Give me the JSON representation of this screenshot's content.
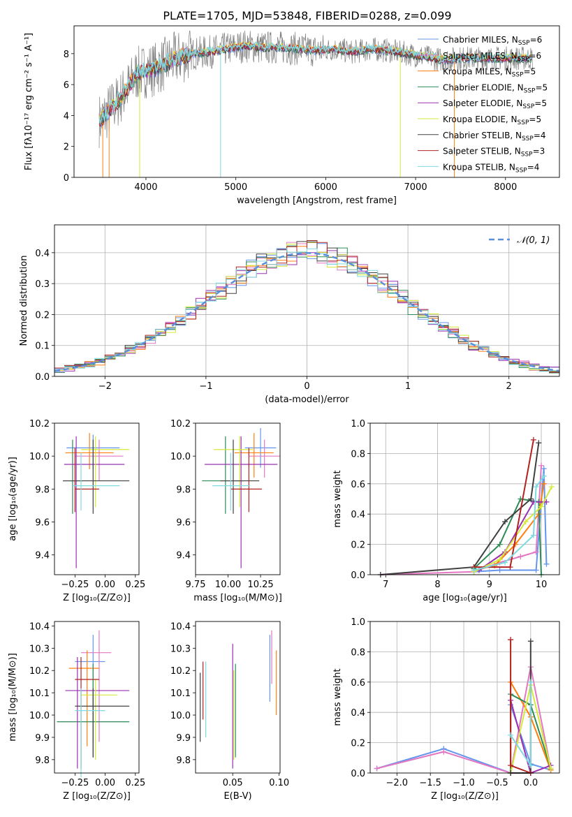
{
  "figure_title": "PLATE=1705, MJD=53848, FIBERID=0288, z=0.099",
  "model_colors": [
    "#6495ED",
    "#E377C2",
    "#FF7F0E",
    "#2E8B57",
    "#9B30B0",
    "#D4E93A",
    "#404040",
    "#B22222",
    "#7FD9E0"
  ],
  "legend_top": [
    {
      "label": "Chabrier MILES, N",
      "sub": "SSP",
      "suffix": "=6"
    },
    {
      "label": "Salpeter MILES, N",
      "sub": "SSP",
      "suffix": "=6"
    },
    {
      "label": "Kroupa MILES, N",
      "sub": "SSP",
      "suffix": "=5"
    },
    {
      "label": "Chabrier ELODIE, N",
      "sub": "SSP",
      "suffix": "=5"
    },
    {
      "label": "Salpeter ELODIE, N",
      "sub": "SSP",
      "suffix": "=5"
    },
    {
      "label": "Kroupa ELODIE, N",
      "sub": "SSP",
      "suffix": "=5"
    },
    {
      "label": "Chabrier STELIB, N",
      "sub": "SSP",
      "suffix": "=4"
    },
    {
      "label": "Salpeter STELIB, N",
      "sub": "SSP",
      "suffix": "=3"
    },
    {
      "label": "Kroupa STELIB, N",
      "sub": "SSP",
      "suffix": "=4"
    }
  ],
  "chart_data": [
    {
      "id": "spectrum",
      "type": "line",
      "xlabel": "wavelength [Angstrom, rest frame]",
      "ylabel": "Flux [fλ10⁻¹⁷ erg cm⁻² s⁻¹ A⁻¹]",
      "xlim": [
        3200,
        8600
      ],
      "ylim": [
        0,
        9.8
      ],
      "xticks": [
        4000,
        5000,
        6000,
        7000,
        8000
      ],
      "yticks": [
        0,
        2,
        4,
        6,
        8
      ],
      "data_color": "#808080",
      "continuum": {
        "x": [
          3500,
          3600,
          3700,
          3800,
          3900,
          4000,
          4100,
          4200,
          4300,
          4400,
          4500,
          4700,
          4900,
          5100,
          5300,
          5500,
          5700,
          5900,
          6100,
          6300,
          6500,
          6700,
          6900,
          7100,
          7300,
          7500
        ],
        "y": [
          3.7,
          4.4,
          5.0,
          5.8,
          6.7,
          6.9,
          7.0,
          7.3,
          7.6,
          7.8,
          8.0,
          8.1,
          8.3,
          8.5,
          8.4,
          8.4,
          8.3,
          8.2,
          8.3,
          8.1,
          8.3,
          8.2,
          8.0,
          7.8,
          7.6,
          7.7
        ]
      }
    },
    {
      "id": "residual_hist",
      "type": "histogram",
      "xlabel": "(data-model)/error",
      "ylabel": "Normed distribution",
      "xlim": [
        -2.5,
        2.5
      ],
      "ylim": [
        0,
        0.49
      ],
      "xticks": [
        -2,
        -1,
        0,
        1,
        2
      ],
      "yticks": [
        0.0,
        0.1,
        0.2,
        0.3,
        0.4
      ],
      "legend": "N(0,1)",
      "gaussian": {
        "mean": 0,
        "sigma": 1,
        "color": "#5B8FD9"
      },
      "grid": true
    },
    {
      "id": "age_vs_Z",
      "type": "errorbar",
      "xlabel": "Z [log₁₀(Z/Z⊙)]",
      "ylabel": "age  [log₁₀(age/yr)]",
      "xlim": [
        -0.42,
        0.28
      ],
      "ylim": [
        9.28,
        10.2
      ],
      "xticks": [
        -0.25,
        0.0,
        0.25
      ],
      "yticks": [
        9.4,
        9.6,
        9.8,
        10.0,
        10.2
      ],
      "points": [
        {
          "x": -0.1,
          "xerr": [
            0.22,
            0.22
          ],
          "y": 10.05,
          "yerr": [
            0.13,
            0.08
          ]
        },
        {
          "x": -0.05,
          "xerr": [
            0.2,
            0.2
          ],
          "y": 10.0,
          "yerr": [
            0.15,
            0.1
          ]
        },
        {
          "x": -0.13,
          "xerr": [
            0.2,
            0.2
          ],
          "y": 10.02,
          "yerr": [
            0.1,
            0.12
          ]
        },
        {
          "x": -0.27,
          "xerr": [
            0.08,
            0.08
          ],
          "y": 9.85,
          "yerr": [
            0.2,
            0.25
          ]
        },
        {
          "x": -0.24,
          "xerr": [
            0.1,
            0.4
          ],
          "y": 9.95,
          "yerr": [
            0.63,
            0.17
          ]
        },
        {
          "x": -0.08,
          "xerr": [
            0.12,
            0.28
          ],
          "y": 10.04,
          "yerr": [
            0.35,
            0.08
          ]
        },
        {
          "x": -0.1,
          "xerr": [
            0.25,
            0.3
          ],
          "y": 9.85,
          "yerr": [
            0.2,
            0.25
          ]
        },
        {
          "x": -0.25,
          "xerr": [
            0.0,
            0.2
          ],
          "y": 9.8,
          "yerr": [
            0.14,
            0.25
          ]
        },
        {
          "x": -0.2,
          "xerr": [
            0.07,
            0.32
          ],
          "y": 9.82,
          "yerr": [
            0.15,
            0.2
          ]
        }
      ]
    },
    {
      "id": "age_vs_mass",
      "type": "errorbar",
      "xlabel": "mass [log₁₀(M/M⊙)]",
      "ylabel": "",
      "xlim": [
        9.75,
        10.4
      ],
      "ylim": [
        9.28,
        10.2
      ],
      "xticks": [
        9.75,
        10.0,
        10.25
      ],
      "yticks": [
        9.4,
        9.6,
        9.8,
        10.0,
        10.2
      ],
      "points": [
        {
          "x": 10.25,
          "xerr": [
            0.12,
            0.12
          ],
          "y": 10.05,
          "yerr": [
            0.12,
            0.12
          ]
        },
        {
          "x": 10.28,
          "xerr": [
            0.12,
            0.12
          ],
          "y": 10.0,
          "yerr": [
            0.13,
            0.1
          ]
        },
        {
          "x": 10.2,
          "xerr": [
            0.15,
            0.15
          ],
          "y": 10.02,
          "yerr": [
            0.15,
            0.12
          ]
        },
        {
          "x": 9.98,
          "xerr": [
            0.18,
            0.14
          ],
          "y": 9.85,
          "yerr": [
            0.2,
            0.27
          ]
        },
        {
          "x": 10.1,
          "xerr": [
            0.28,
            0.28
          ],
          "y": 9.95,
          "yerr": [
            0.63,
            0.17
          ]
        },
        {
          "x": 10.09,
          "xerr": [
            0.2,
            0.1
          ],
          "y": 10.04,
          "yerr": [
            0.35,
            0.08
          ]
        },
        {
          "x": 10.04,
          "xerr": [
            0.1,
            0.2
          ],
          "y": 9.85,
          "yerr": [
            0.2,
            0.25
          ]
        },
        {
          "x": 10.16,
          "xerr": [
            0.14,
            0.1
          ],
          "y": 9.8,
          "yerr": [
            0.14,
            0.25
          ]
        },
        {
          "x": 10.02,
          "xerr": [
            0.14,
            0.15
          ],
          "y": 9.82,
          "yerr": [
            0.15,
            0.2
          ]
        }
      ]
    },
    {
      "id": "weight_vs_age",
      "type": "line",
      "xlabel": "age  [log₁₀(age/yr)]",
      "ylabel": "mass weight",
      "xlim": [
        6.7,
        10.35
      ],
      "ylim": [
        0,
        1.0
      ],
      "xticks": [
        7,
        8,
        9,
        10
      ],
      "yticks": [
        0.0,
        0.2,
        0.4,
        0.6,
        0.8,
        1.0
      ],
      "grid": true,
      "series": [
        {
          "x": [
            8.7,
            9.2,
            9.9,
            10.05,
            10.1
          ],
          "y": [
            0.02,
            0.03,
            0.03,
            0.7,
            0.07
          ]
        },
        {
          "x": [
            6.9,
            8.7,
            9.2,
            9.6,
            9.9,
            10.0
          ],
          "y": [
            0.0,
            0.02,
            0.08,
            0.12,
            0.15,
            0.72
          ]
        },
        {
          "x": [
            8.7,
            9.1,
            9.5,
            9.95,
            10.05
          ],
          "y": [
            0.03,
            0.06,
            0.2,
            0.4,
            0.6
          ]
        },
        {
          "x": [
            8.7,
            9.2,
            9.6,
            9.95,
            10.0
          ],
          "y": [
            0.04,
            0.2,
            0.5,
            0.48,
            0.0
          ]
        },
        {
          "x": [
            8.8,
            9.3,
            9.85,
            10.1
          ],
          "y": [
            0.03,
            0.15,
            0.48,
            0.48
          ]
        },
        {
          "x": [
            8.7,
            9.2,
            9.7,
            10.0,
            10.2
          ],
          "y": [
            0.02,
            0.1,
            0.35,
            0.45,
            0.58
          ]
        },
        {
          "x": [
            6.9,
            8.7,
            9.3,
            9.8,
            9.95
          ],
          "y": [
            0.0,
            0.05,
            0.35,
            0.5,
            0.87
          ]
        },
        {
          "x": [
            8.7,
            9.4,
            9.85
          ],
          "y": [
            0.05,
            0.05,
            0.89
          ]
        },
        {
          "x": [
            8.7,
            9.3,
            9.85,
            9.9,
            10.05
          ],
          "y": [
            0.03,
            0.08,
            0.26,
            0.58,
            0.65
          ]
        }
      ]
    },
    {
      "id": "mass_vs_Z",
      "type": "errorbar",
      "xlabel": "Z [log₁₀(Z/Z⊙)]",
      "ylabel": "mass [log₁₀(M/M⊙)]",
      "xlim": [
        -0.42,
        0.28
      ],
      "ylim": [
        9.74,
        10.42
      ],
      "xticks": [
        -0.25,
        0.0,
        0.25
      ],
      "yticks": [
        9.8,
        9.9,
        10.0,
        10.1,
        10.2,
        10.3,
        10.4
      ],
      "points": [
        {
          "x": -0.1,
          "xerr": [
            0.15,
            0.1
          ],
          "y": 10.24,
          "yerr": [
            0.36,
            0.12
          ]
        },
        {
          "x": -0.05,
          "xerr": [
            0.15,
            0.1
          ],
          "y": 10.28,
          "yerr": [
            0.4,
            0.1
          ]
        },
        {
          "x": -0.15,
          "xerr": [
            0.15,
            0.1
          ],
          "y": 10.21,
          "yerr": [
            0.35,
            0.08
          ]
        },
        {
          "x": -0.1,
          "xerr": [
            0.3,
            0.3
          ],
          "y": 9.97,
          "yerr": [
            0.16,
            0.26
          ]
        },
        {
          "x": -0.23,
          "xerr": [
            0.1,
            0.43
          ],
          "y": 10.11,
          "yerr": [
            0.35,
            0.15
          ]
        },
        {
          "x": -0.08,
          "xerr": [
            0.12,
            0.18
          ],
          "y": 10.09,
          "yerr": [
            0.29,
            0.07
          ]
        },
        {
          "x": -0.1,
          "xerr": [
            0.15,
            0.3
          ],
          "y": 10.04,
          "yerr": [
            0.23,
            0.08
          ]
        },
        {
          "x": -0.2,
          "xerr": [
            0.05,
            0.15
          ],
          "y": 10.16,
          "yerr": [
            0.4,
            0.1
          ]
        },
        {
          "x": -0.2,
          "xerr": [
            0.05,
            0.2
          ],
          "y": 10.02,
          "yerr": [
            0.3,
            0.1
          ]
        }
      ]
    },
    {
      "id": "mass_vs_EBV",
      "type": "errorbar",
      "xlabel": "E(B-V)",
      "ylabel": "",
      "xlim": [
        0.01,
        0.101
      ],
      "ylim": [
        9.74,
        10.42
      ],
      "xticks": [
        0.05,
        0.1
      ],
      "yticks": [
        9.8,
        9.9,
        10.0,
        10.1,
        10.2,
        10.3,
        10.4
      ],
      "points": [
        {
          "x": 0.09,
          "y": 10.2,
          "yerr": [
            0.14,
            0.16
          ]
        },
        {
          "x": 0.092,
          "y": 10.26,
          "yerr": [
            0.12,
            0.12
          ]
        },
        {
          "x": 0.097,
          "y": 10.14,
          "yerr": [
            0.14,
            0.15
          ]
        },
        {
          "x": 0.053,
          "y": 10.02,
          "yerr": [
            0.21,
            0.21
          ]
        },
        {
          "x": 0.05,
          "y": 10.11,
          "yerr": [
            0.35,
            0.21
          ]
        },
        {
          "x": 0.051,
          "y": 10.05,
          "yerr": [
            0.25,
            0.15
          ]
        },
        {
          "x": 0.015,
          "y": 10.03,
          "yerr": [
            0.15,
            0.16
          ]
        },
        {
          "x": 0.018,
          "y": 10.11,
          "yerr": [
            0.13,
            0.13
          ]
        },
        {
          "x": 0.021,
          "y": 10.06,
          "yerr": [
            0.16,
            0.18
          ]
        }
      ]
    },
    {
      "id": "weight_vs_Z",
      "type": "line",
      "xlabel": "Z [log₁₀(Z/Z⊙)]",
      "ylabel": "mass weight",
      "xlim": [
        -2.4,
        0.43
      ],
      "ylim": [
        0,
        1.0
      ],
      "xticks": [
        -2.0,
        -1.5,
        -1.0,
        -0.5,
        0.0
      ],
      "yticks": [
        0.0,
        0.2,
        0.4,
        0.6,
        0.8,
        1.0
      ],
      "grid": true,
      "series": [
        {
          "x": [
            -2.3,
            -1.3,
            -0.3,
            -0.3,
            0.0,
            0.3
          ],
          "y": [
            0.03,
            0.16,
            0.0,
            0.45,
            0.06,
            0.02
          ]
        },
        {
          "x": [
            -2.3,
            -1.3,
            -0.3,
            0.0,
            0.3
          ],
          "y": [
            0.03,
            0.14,
            0.0,
            0.7,
            0.03
          ]
        },
        {
          "x": [
            -0.3,
            -0.3,
            0.0,
            0.3
          ],
          "y": [
            0.0,
            0.6,
            0.37,
            0.02
          ]
        },
        {
          "x": [
            -0.3,
            -0.3,
            0.0,
            0.3
          ],
          "y": [
            0.0,
            0.52,
            0.45,
            0.03
          ]
        },
        {
          "x": [
            -0.3,
            0.0,
            0.3
          ],
          "y": [
            0.48,
            0.0,
            0.05
          ]
        },
        {
          "x": [
            -0.3,
            0.0,
            0.3
          ],
          "y": [
            0.0,
            0.58,
            0.03
          ]
        },
        {
          "x": [
            -0.3,
            0.0,
            0.0
          ],
          "y": [
            0.0,
            0.0,
            0.87
          ]
        },
        {
          "x": [
            -0.3,
            -0.3,
            0.0
          ],
          "y": [
            0.88,
            0.05,
            0.0
          ]
        },
        {
          "x": [
            -0.3,
            0.0,
            0.0
          ],
          "y": [
            0.25,
            0.05,
            0.6
          ]
        }
      ]
    }
  ]
}
